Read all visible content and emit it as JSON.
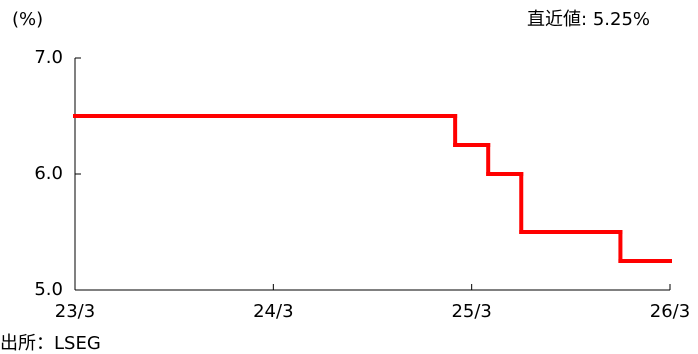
{
  "chart_data": {
    "type": "step",
    "y_unit_label": "(%)",
    "annotation": "直近値:  5.25%",
    "source": "出所：LSEG",
    "x": [
      "23/3",
      "25/2",
      "25/4",
      "25/6",
      "25/12",
      "26/3"
    ],
    "series": [
      {
        "color": "#ff0000",
        "values": [
          6.5,
          6.25,
          6.0,
          5.5,
          5.25,
          5.25
        ]
      }
    ],
    "xlim": [
      "23/3",
      "26/3"
    ],
    "xticks": [
      "23/3",
      "24/3",
      "25/3",
      "26/3"
    ],
    "ylim": [
      5,
      7
    ],
    "yticks": [
      {
        "value": 5,
        "label": "5.0"
      },
      {
        "value": 6,
        "label": "6.0"
      },
      {
        "value": 7,
        "label": "7.0"
      }
    ],
    "grid": false
  }
}
